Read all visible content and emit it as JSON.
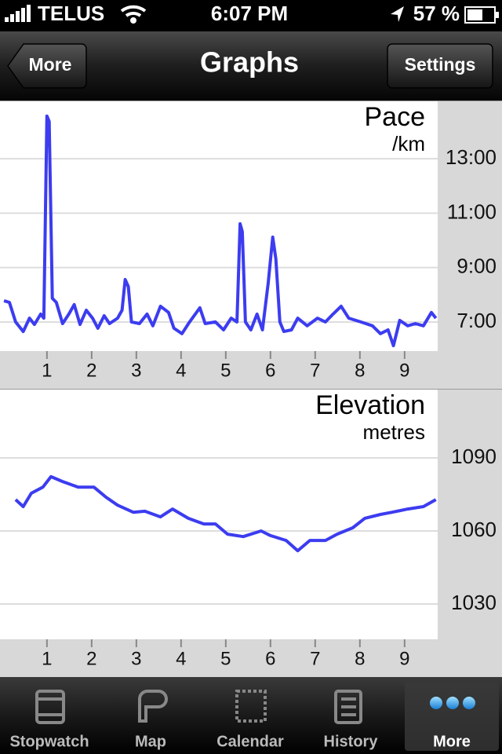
{
  "status_bar": {
    "carrier": "TELUS",
    "time": "6:07 PM",
    "battery": "57 %"
  },
  "nav_bar": {
    "back": "More",
    "title": "Graphs",
    "action": "Settings"
  },
  "chart_data": [
    {
      "type": "line",
      "title": "Pace",
      "ylabel": "/km",
      "x": [
        0.04,
        0.16,
        0.3,
        0.47,
        0.61,
        0.72,
        0.86,
        0.93,
        1.0,
        1.05,
        1.12,
        1.21,
        1.35,
        1.49,
        1.61,
        1.74,
        1.88,
        2.02,
        2.14,
        2.28,
        2.4,
        2.58,
        2.68,
        2.75,
        2.82,
        2.89,
        3.07,
        3.24,
        3.37,
        3.54,
        3.72,
        3.84,
        4.02,
        4.19,
        4.42,
        4.54,
        4.77,
        4.95,
        5.12,
        5.25,
        5.32,
        5.37,
        5.44,
        5.56,
        5.7,
        5.82,
        5.95,
        6.05,
        6.12,
        6.21,
        6.3,
        6.47,
        6.61,
        6.82,
        7.05,
        7.23,
        7.4,
        7.58,
        7.75,
        8.02,
        8.28,
        8.46,
        8.63,
        8.75,
        8.89,
        9.07,
        9.24,
        9.42,
        9.6,
        9.7
      ],
      "series": [
        {
          "color": "#3c3cf0",
          "values": [
            7.78,
            7.72,
            7.0,
            6.65,
            7.14,
            6.91,
            7.29,
            7.14,
            14.57,
            14.37,
            7.87,
            7.72,
            6.94,
            7.29,
            7.64,
            6.91,
            7.43,
            7.14,
            6.77,
            7.23,
            6.94,
            7.14,
            7.43,
            8.56,
            8.3,
            7.0,
            6.94,
            7.29,
            6.86,
            7.58,
            7.35,
            6.77,
            6.57,
            7.0,
            7.52,
            6.94,
            7.0,
            6.71,
            7.14,
            7.0,
            10.61,
            10.32,
            7.0,
            6.71,
            7.29,
            6.71,
            8.45,
            10.12,
            9.31,
            7.0,
            6.65,
            6.71,
            7.14,
            6.86,
            7.14,
            7.0,
            7.29,
            7.58,
            7.14,
            7.0,
            6.86,
            6.57,
            6.71,
            6.13,
            7.06,
            6.86,
            6.94,
            6.86,
            7.35,
            7.14
          ]
        }
      ],
      "xlim": [
        -0.05,
        9.74
      ],
      "xticks": [
        1,
        2,
        3,
        4,
        5,
        6,
        7,
        8,
        9
      ],
      "ylim": [
        5.93,
        15.14
      ],
      "yticks": [
        {
          "value": 7,
          "label": "7:00"
        },
        {
          "value": 9,
          "label": "9:00"
        },
        {
          "value": 11,
          "label": "11:00"
        },
        {
          "value": 13,
          "label": "13:00"
        }
      ],
      "grid": true
    },
    {
      "type": "line",
      "title": "Elevation",
      "ylabel": "metres",
      "x": [
        0.3,
        0.47,
        0.65,
        0.91,
        1.09,
        1.35,
        1.7,
        2.05,
        2.32,
        2.58,
        2.93,
        3.19,
        3.54,
        3.81,
        4.16,
        4.51,
        4.77,
        5.04,
        5.39,
        5.79,
        6.0,
        6.35,
        6.61,
        6.88,
        7.23,
        7.49,
        7.84,
        8.11,
        8.46,
        8.72,
        9.07,
        9.42,
        9.7
      ],
      "series": [
        {
          "color": "#3c3cf0",
          "values": [
            1072.9,
            1070,
            1075.5,
            1078,
            1082.3,
            1080.3,
            1078,
            1078,
            1073.9,
            1070.6,
            1067.7,
            1068.1,
            1065.8,
            1069,
            1065.2,
            1062.9,
            1062.9,
            1058.7,
            1057.7,
            1060,
            1058.1,
            1056.1,
            1051.9,
            1056.1,
            1056.1,
            1058.7,
            1061.3,
            1065.2,
            1066.8,
            1067.7,
            1069,
            1070,
            1072.9
          ]
        }
      ],
      "xlim": [
        -0.05,
        9.74
      ],
      "xticks": [
        1,
        2,
        3,
        4,
        5,
        6,
        7,
        8,
        9
      ],
      "ylim": [
        1015.5,
        1118.4
      ],
      "yticks": [
        1030,
        1060,
        1090
      ],
      "grid": true
    }
  ],
  "tab_bar": {
    "items": [
      "Stopwatch",
      "Map",
      "Calendar",
      "History",
      "More"
    ]
  }
}
